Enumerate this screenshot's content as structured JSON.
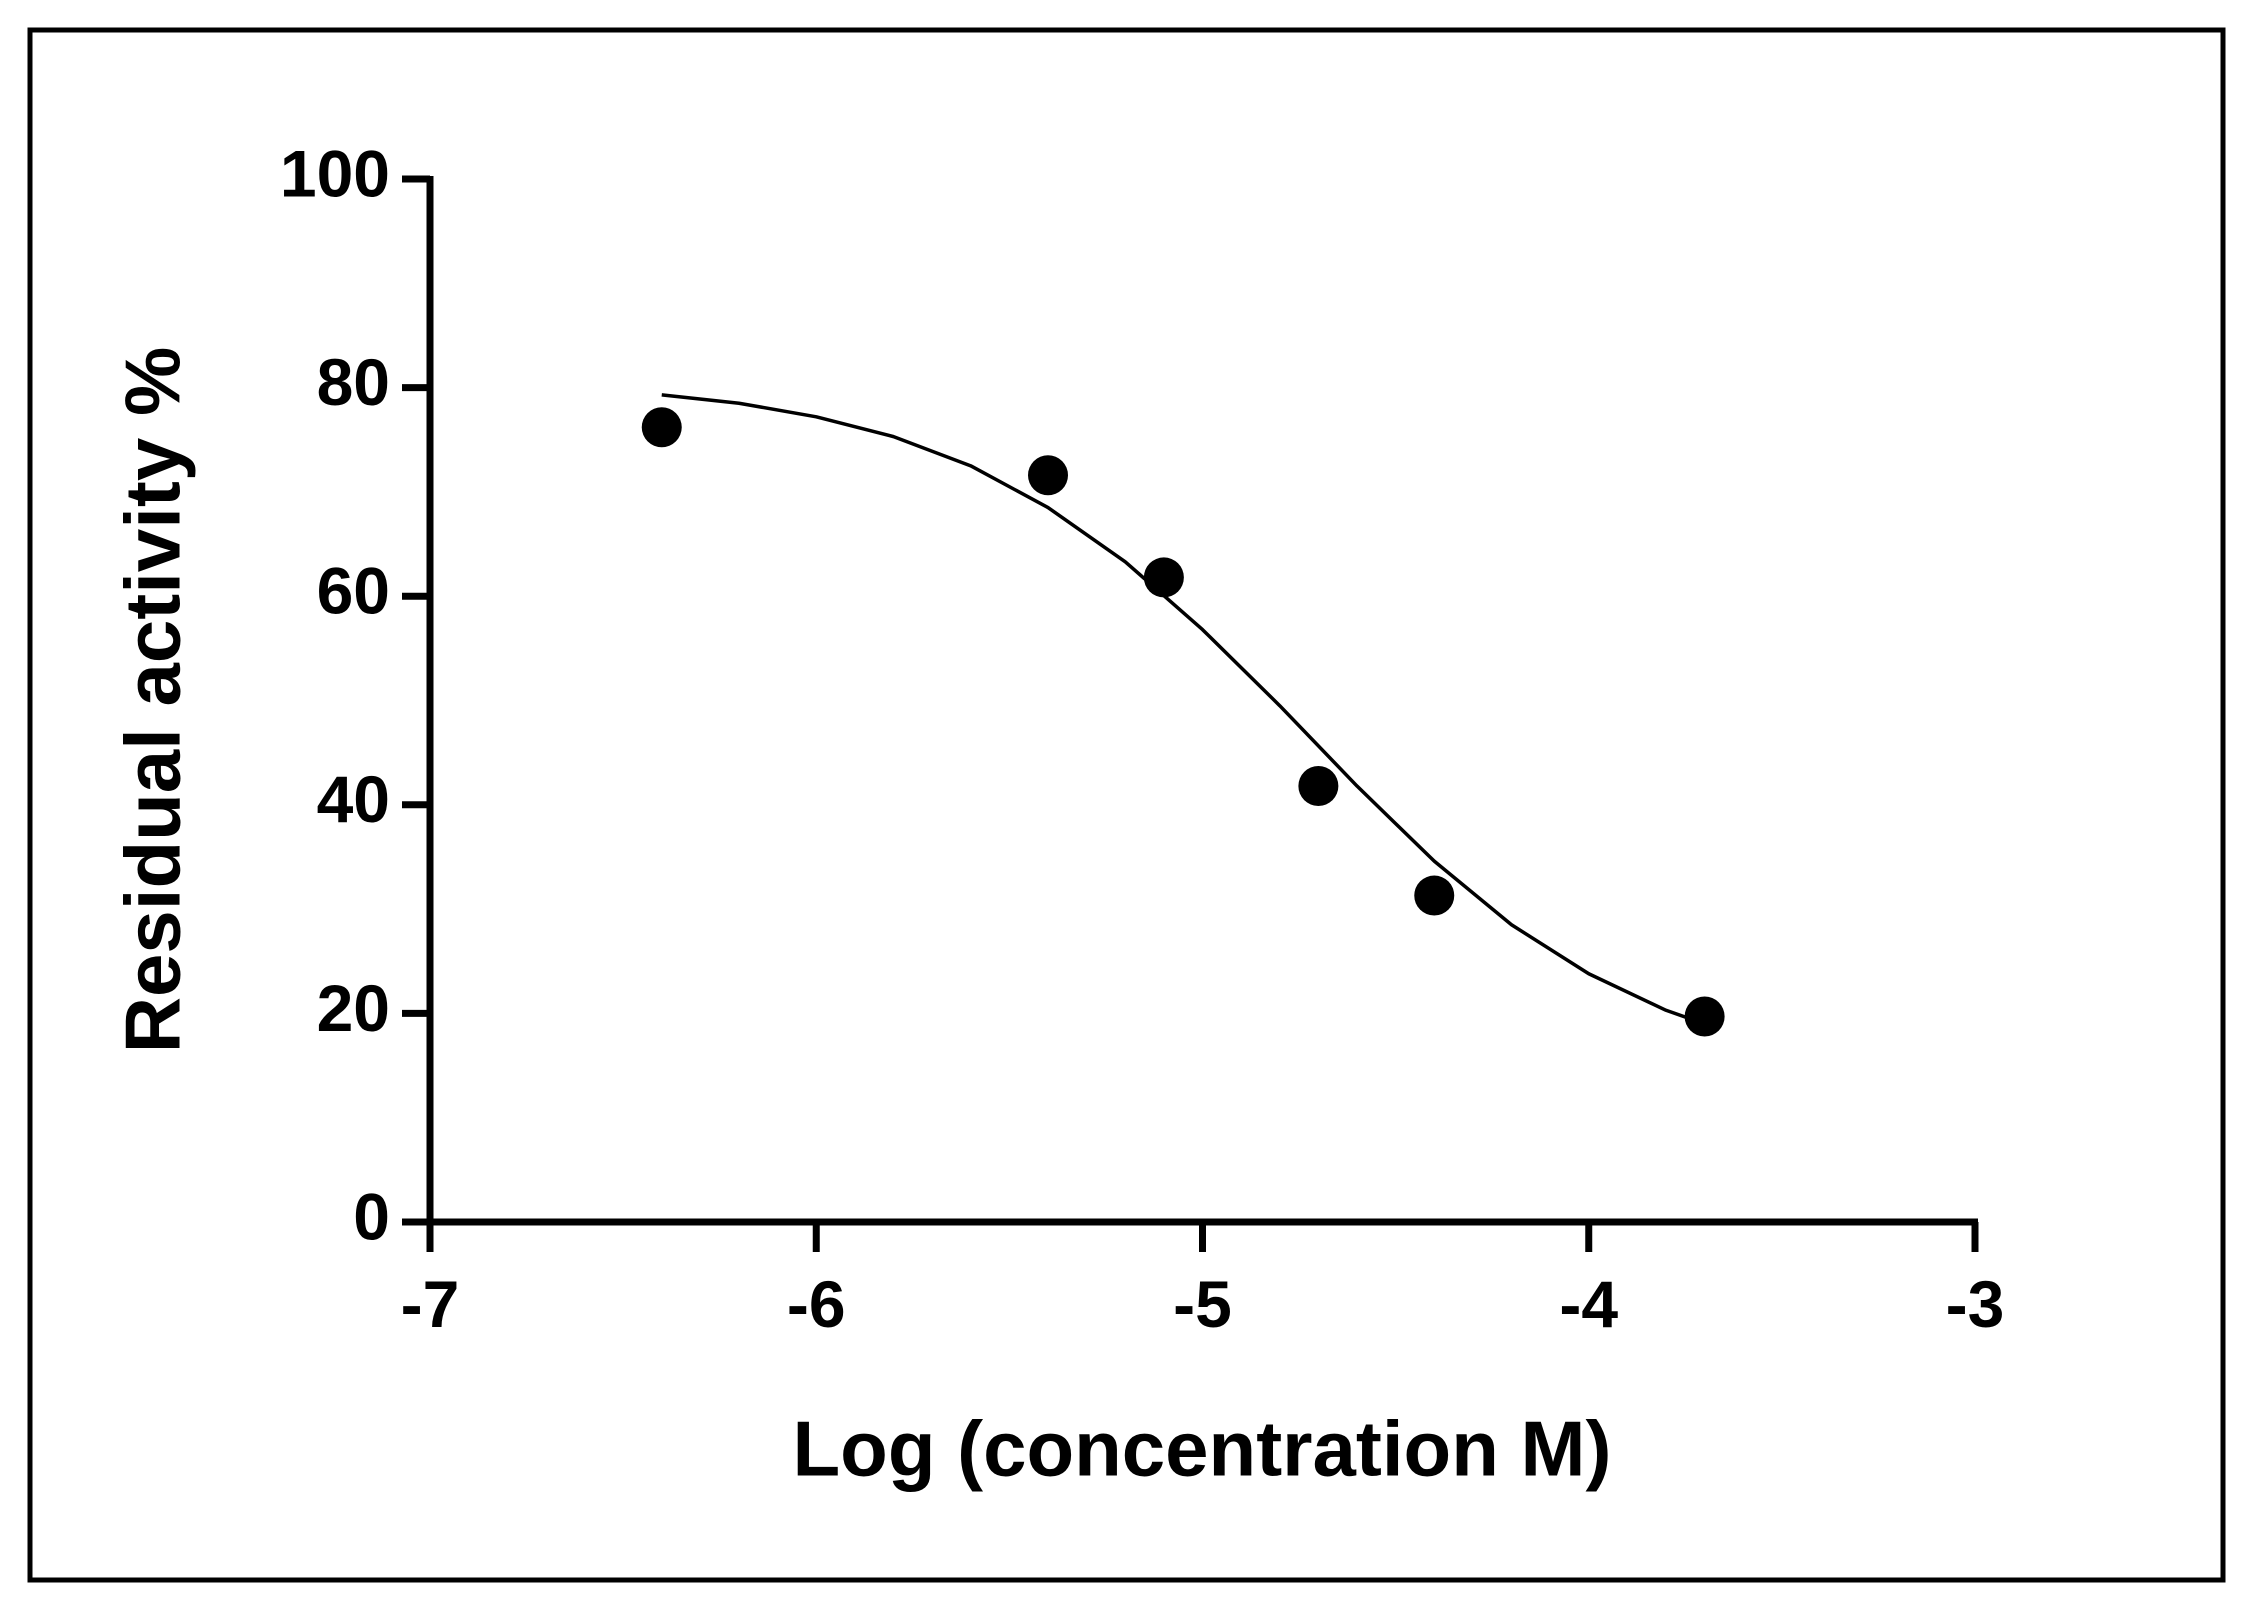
{
  "chart_data": {
    "type": "scatter",
    "x_label": "Log (concentration M)",
    "y_label": "Residual activity %",
    "xlim": [
      -7,
      -3
    ],
    "xticks": [
      -7,
      -6,
      -5,
      -4,
      -3
    ],
    "ylim": [
      0,
      100
    ],
    "yticks": [
      0,
      20,
      40,
      60,
      80,
      100
    ],
    "grid": false,
    "series": [
      {
        "type": "scatter",
        "color": "#000000",
        "x": [
          -6.4,
          -5.4,
          -5.1,
          -4.7,
          -4.4,
          -3.7
        ],
        "values": [
          76.2,
          71.6,
          61.8,
          41.8,
          31.3,
          19.7
        ]
      },
      {
        "type": "line",
        "color": "#000000",
        "x": [
          -6.4,
          -6.2,
          -6.0,
          -5.8,
          -5.6,
          -5.4,
          -5.2,
          -5.0,
          -4.8,
          -4.6,
          -4.4,
          -4.2,
          -4.0,
          -3.8,
          -3.7
        ],
        "values": [
          79.3,
          78.5,
          77.2,
          75.3,
          72.5,
          68.5,
          63.3,
          56.8,
          49.5,
          41.8,
          34.6,
          28.5,
          23.8,
          20.3,
          19.0
        ]
      }
    ]
  }
}
